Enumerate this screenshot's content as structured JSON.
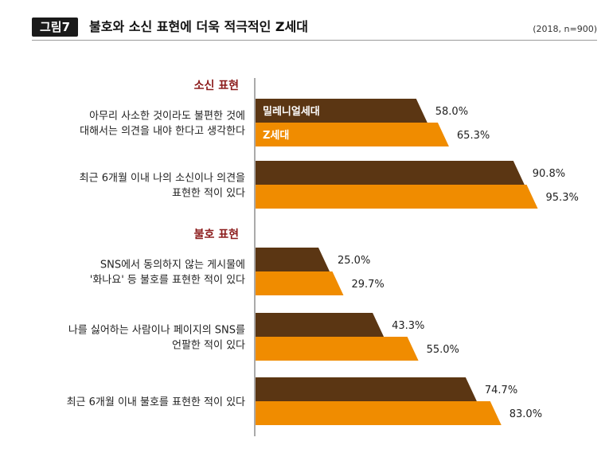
{
  "header": {
    "figure_label": "그림7",
    "title": "불호와 소신 표현에 더욱 적극적인 Z세대",
    "note": "(2018, n=900)"
  },
  "colors": {
    "millennial": "#5b3613",
    "genz": "#f08c00",
    "section_title": "#8c1c1c",
    "label_text": "#222222"
  },
  "chart_data": {
    "type": "bar",
    "orientation": "horizontal",
    "unit": "%",
    "xlim": [
      0,
      100
    ],
    "series": [
      {
        "name": "밀레니얼세대",
        "values": [
          58.0,
          90.8,
          25.0,
          43.3,
          74.7
        ]
      },
      {
        "name": "Z세대",
        "values": [
          65.3,
          95.3,
          29.7,
          55.0,
          83.0
        ]
      }
    ],
    "value_labels": [
      [
        "58.0%",
        "90.8%",
        "25.0%",
        "43.3%",
        "74.7%"
      ],
      [
        "65.3%",
        "95.3%",
        "29.7%",
        "55.0%",
        "83.0%"
      ]
    ],
    "legend_placement": "inside first pair of bars",
    "sections": [
      {
        "title": "소신 표현",
        "categories": [
          0,
          1
        ]
      },
      {
        "title": "불호 표현",
        "categories": [
          2,
          3,
          4
        ]
      }
    ],
    "categories": [
      [
        "아무리 사소한 것이라도 불편한 것에",
        "대해서는 의견을 내야 한다고 생각한다"
      ],
      [
        "최근 6개월 이내 나의 소신이나 의견을",
        "표현한 적이 있다"
      ],
      [
        "SNS에서 동의하지 않는 게시물에",
        "'화나요' 등 불호를 표현한 적이 있다"
      ],
      [
        "나를 싫어하는 사람이나 페이지의 SNS를",
        "언팔한 적이 있다"
      ],
      [
        "최근 6개월 이내 불호를 표현한 적이 있다"
      ]
    ]
  }
}
